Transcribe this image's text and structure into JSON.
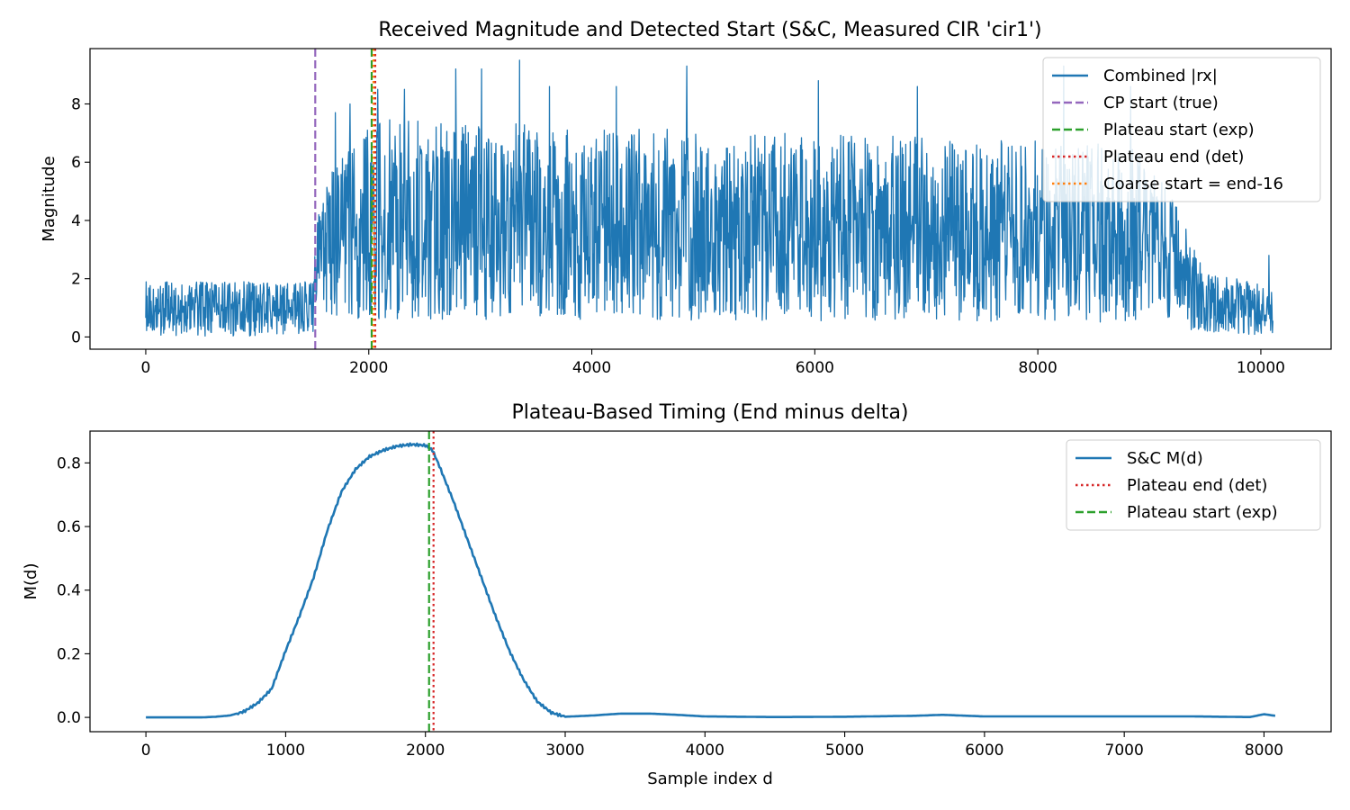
{
  "chart_data": [
    {
      "type": "line",
      "title": "Received Magnitude and Detected Start (S&C, Measured CIR 'cir1')",
      "xlabel": "",
      "ylabel": "Magnitude",
      "xlim": [
        -500,
        10630
      ],
      "ylim": [
        -0.42,
        9.9
      ],
      "xticks": [
        0,
        2000,
        4000,
        6000,
        8000,
        10000
      ],
      "yticks": [
        0,
        2,
        4,
        6,
        8
      ],
      "grid": false,
      "legend_position": "top-right",
      "n_samples": 10112,
      "envelope": {
        "x": [
          0,
          1500,
          1520,
          1700,
          2000,
          9000,
          9300,
          9500,
          10112
        ],
        "upper": [
          1.9,
          1.9,
          4.0,
          6.0,
          7.5,
          6.6,
          4.0,
          2.2,
          1.8
        ],
        "lower": [
          0.02,
          0.02,
          0.3,
          0.6,
          0.6,
          0.5,
          0.3,
          0.1,
          0.05
        ]
      },
      "peaks": [
        {
          "x": 1700,
          "y": 7.7
        },
        {
          "x": 1830,
          "y": 8.0
        },
        {
          "x": 2080,
          "y": 8.5
        },
        {
          "x": 2320,
          "y": 8.5
        },
        {
          "x": 2780,
          "y": 9.2
        },
        {
          "x": 3010,
          "y": 9.2
        },
        {
          "x": 3350,
          "y": 9.5
        },
        {
          "x": 3620,
          "y": 8.6
        },
        {
          "x": 4220,
          "y": 8.6
        },
        {
          "x": 4850,
          "y": 9.3
        },
        {
          "x": 6030,
          "y": 8.8
        },
        {
          "x": 6920,
          "y": 8.6
        },
        {
          "x": 8230,
          "y": 9.3
        },
        {
          "x": 8830,
          "y": 8.6
        },
        {
          "x": 10070,
          "y": 2.8
        }
      ],
      "series": [
        {
          "name": "Combined |rx|",
          "color": "#1f77b4",
          "style": "solid"
        }
      ],
      "vlines": [
        {
          "name": "CP start (true)",
          "x": 1520,
          "color": "#9467bd",
          "style": "dashed"
        },
        {
          "name": "Plateau start (exp)",
          "x": 2026,
          "color": "#2ca02c",
          "style": "dashed"
        },
        {
          "name": "Plateau end (det)",
          "x": 2058,
          "color": "#d62728",
          "style": "dotted"
        },
        {
          "name": "Coarse start = end-16",
          "x": 2042,
          "color": "#ff7f0e",
          "style": "dotted"
        }
      ],
      "legend_entries": [
        {
          "label": "Combined |rx|",
          "color": "#1f77b4",
          "style": "solid"
        },
        {
          "label": "CP start (true)",
          "color": "#9467bd",
          "style": "dashed"
        },
        {
          "label": "Plateau start (exp)",
          "color": "#2ca02c",
          "style": "dashed"
        },
        {
          "label": "Plateau end (det)",
          "color": "#d62728",
          "style": "dotted"
        },
        {
          "label": "Coarse start = end-16",
          "color": "#ff7f0e",
          "style": "dotted"
        }
      ]
    },
    {
      "type": "line",
      "title": "Plateau-Based Timing (End minus delta)",
      "xlabel": "Sample index d",
      "ylabel": "M(d)",
      "xlim": [
        -400,
        8480
      ],
      "ylim": [
        -0.045,
        0.9
      ],
      "xticks": [
        0,
        1000,
        2000,
        3000,
        4000,
        5000,
        6000,
        7000,
        8000
      ],
      "yticks": [
        0.0,
        0.2,
        0.4,
        0.6,
        0.8
      ],
      "grid": false,
      "legend_position": "top-right",
      "series": [
        {
          "name": "S&C M(d)",
          "color": "#1f77b4",
          "style": "solid",
          "x": [
            0,
            400,
            500,
            600,
            700,
            800,
            900,
            1000,
            1100,
            1200,
            1300,
            1400,
            1500,
            1600,
            1700,
            1800,
            1900,
            2000,
            2050,
            2100,
            2200,
            2300,
            2400,
            2500,
            2600,
            2700,
            2800,
            2900,
            3000,
            3100,
            3200,
            3400,
            3600,
            3800,
            4000,
            4500,
            5000,
            5500,
            5700,
            6000,
            6500,
            7000,
            7500,
            7900,
            8000,
            8080
          ],
          "y": [
            0.0,
            0.0,
            0.002,
            0.006,
            0.018,
            0.045,
            0.09,
            0.21,
            0.32,
            0.44,
            0.59,
            0.71,
            0.78,
            0.82,
            0.84,
            0.853,
            0.858,
            0.855,
            0.84,
            0.79,
            0.68,
            0.56,
            0.44,
            0.32,
            0.21,
            0.12,
            0.05,
            0.015,
            0.002,
            0.004,
            0.006,
            0.012,
            0.012,
            0.008,
            0.003,
            0.001,
            0.002,
            0.005,
            0.008,
            0.003,
            0.003,
            0.003,
            0.003,
            0.001,
            0.01,
            0.005
          ]
        }
      ],
      "vlines": [
        {
          "name": "Plateau end (det)",
          "x": 2058,
          "color": "#d62728",
          "style": "dotted"
        },
        {
          "name": "Plateau start (exp)",
          "x": 2026,
          "color": "#2ca02c",
          "style": "dashed"
        }
      ],
      "legend_entries": [
        {
          "label": "S&C M(d)",
          "color": "#1f77b4",
          "style": "solid"
        },
        {
          "label": "Plateau end (det)",
          "color": "#d62728",
          "style": "dotted"
        },
        {
          "label": "Plateau start (exp)",
          "color": "#2ca02c",
          "style": "dashed"
        }
      ]
    }
  ]
}
